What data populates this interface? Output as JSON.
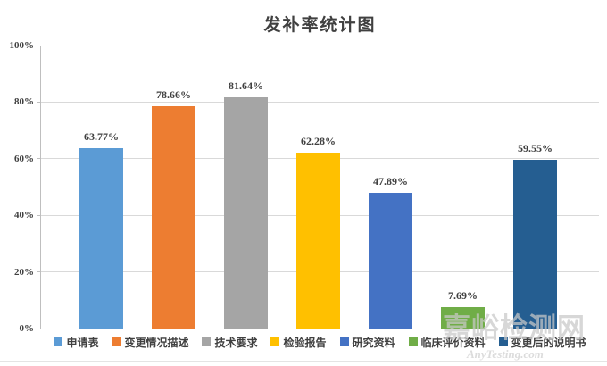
{
  "chart_data": {
    "type": "bar",
    "title": "发补率统计图",
    "categories": [
      "申请表",
      "变更情况描述",
      "技术要求",
      "检验报告",
      "研究资料",
      "临床评价资料",
      "变更后的说明书"
    ],
    "values": [
      63.77,
      78.66,
      81.64,
      62.28,
      47.89,
      7.69,
      59.55
    ],
    "value_labels": [
      "63.77%",
      "78.66%",
      "81.64%",
      "62.28%",
      "47.89%",
      "7.69%",
      "59.55%"
    ],
    "colors": [
      "#5B9BD5",
      "#ED7D31",
      "#A5A5A5",
      "#FFC000",
      "#4472C4",
      "#70AD47",
      "#255E91"
    ],
    "y_tick_labels": [
      "0%",
      "20%",
      "40%",
      "60%",
      "80%",
      "100%"
    ],
    "ylim": [
      0,
      100
    ],
    "grid": true,
    "legend_position": "bottom",
    "xlabel": "",
    "ylabel": "",
    "text_color": "#404040",
    "gridline_color": "#D9D9D9",
    "axis_color": "#BFBFBF"
  },
  "watermark": {
    "text": "嘉峪检测网",
    "subtext": "AnyTesting.com"
  }
}
